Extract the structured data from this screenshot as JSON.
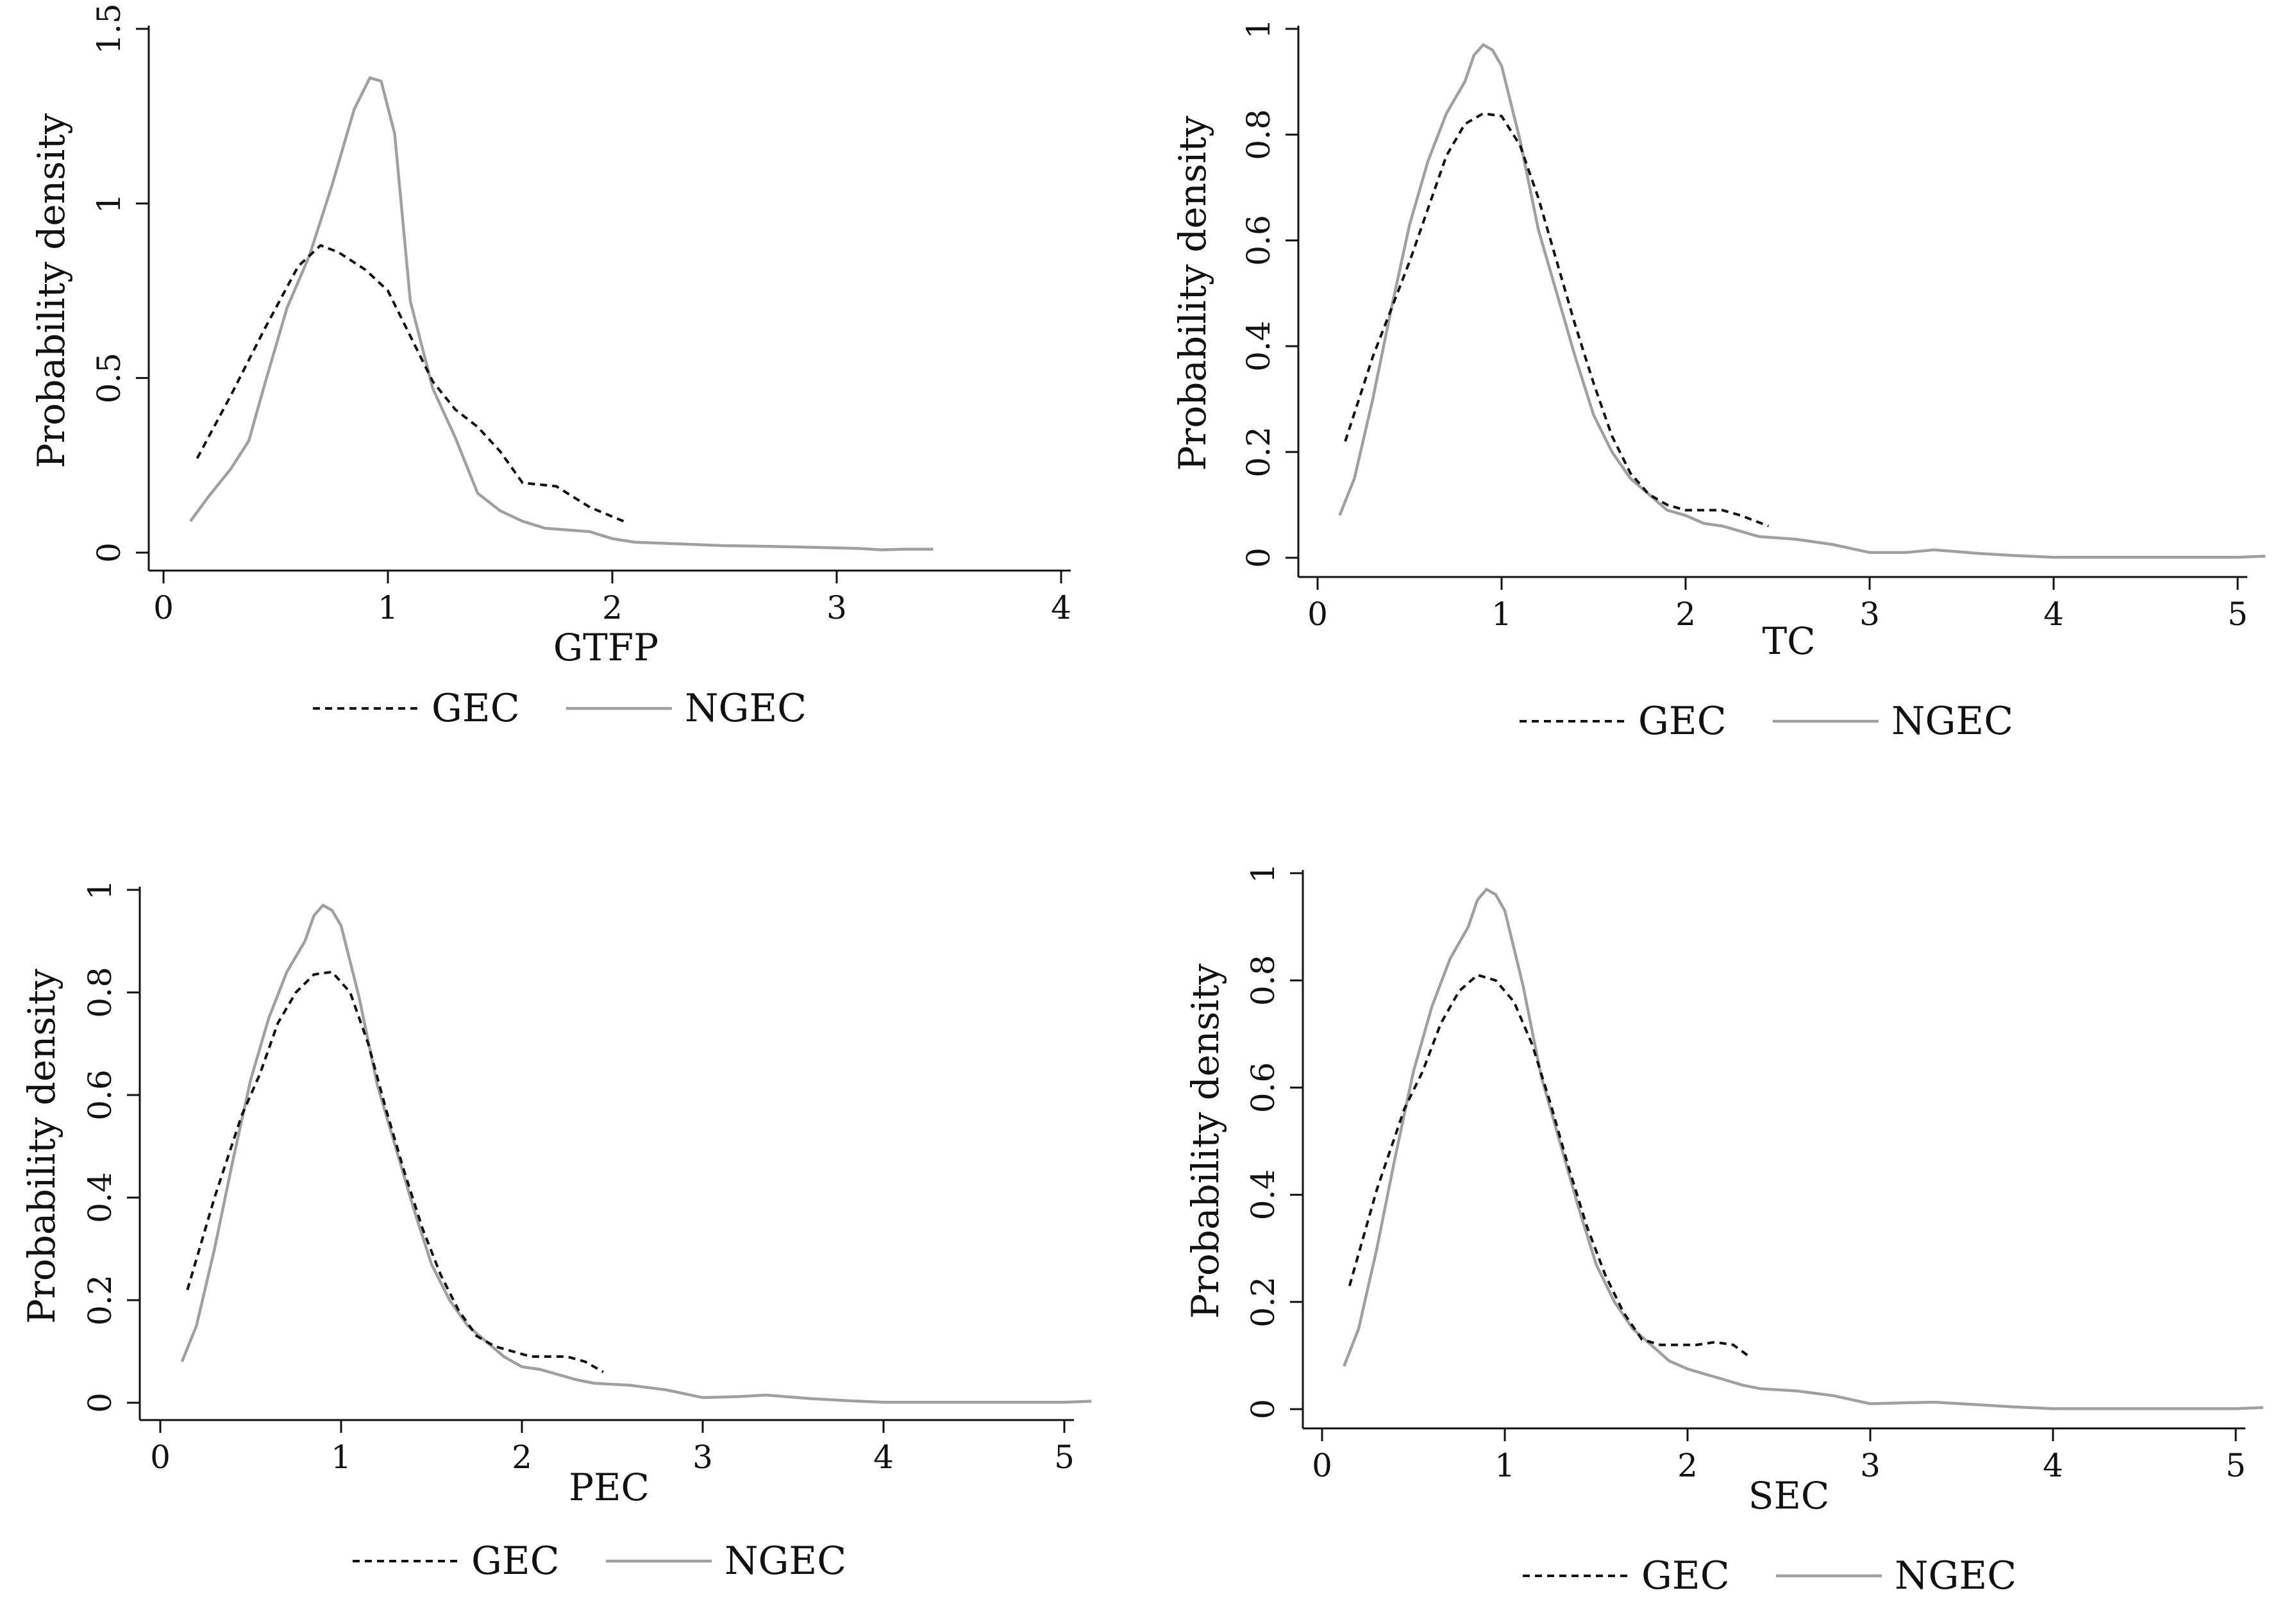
{
  "chart_data": [
    {
      "type": "line",
      "xlabel": "GTFP",
      "ylabel": "Probability density",
      "xlim": [
        0,
        4
      ],
      "ylim": [
        0,
        1.5
      ],
      "xticks": [
        "0",
        "1",
        "2",
        "3",
        "4"
      ],
      "yticks": [
        "0",
        "0.5",
        "1",
        "1.5"
      ],
      "grid": false,
      "legend": "bottom",
      "series": [
        {
          "name": "GEC",
          "style": "dashed",
          "color": "#111111",
          "x": [
            0.15,
            0.3,
            0.45,
            0.6,
            0.7,
            0.78,
            0.9,
            1.0,
            1.1,
            1.2,
            1.3,
            1.4,
            1.5,
            1.6,
            1.75,
            1.9,
            2.05
          ],
          "y": [
            0.27,
            0.45,
            0.64,
            0.82,
            0.88,
            0.86,
            0.81,
            0.75,
            0.62,
            0.49,
            0.41,
            0.36,
            0.29,
            0.2,
            0.19,
            0.13,
            0.09
          ]
        },
        {
          "name": "NGEC",
          "style": "solid",
          "color": "#a0a0a0",
          "x": [
            0.12,
            0.2,
            0.3,
            0.38,
            0.45,
            0.55,
            0.65,
            0.75,
            0.85,
            0.92,
            0.97,
            1.03,
            1.1,
            1.2,
            1.3,
            1.4,
            1.5,
            1.6,
            1.7,
            1.8,
            1.9,
            2.0,
            2.1,
            2.3,
            2.5,
            2.7,
            2.9,
            3.1,
            3.2,
            3.3,
            3.43
          ],
          "y": [
            0.09,
            0.16,
            0.24,
            0.32,
            0.48,
            0.7,
            0.85,
            1.05,
            1.27,
            1.36,
            1.35,
            1.2,
            0.72,
            0.47,
            0.33,
            0.17,
            0.12,
            0.09,
            0.07,
            0.065,
            0.06,
            0.04,
            0.03,
            0.025,
            0.02,
            0.018,
            0.015,
            0.012,
            0.008,
            0.01,
            0.01
          ]
        }
      ]
    },
    {
      "type": "line",
      "xlabel": "TC",
      "ylabel": "Probability density",
      "xlim": [
        0,
        5
      ],
      "ylim": [
        0,
        1
      ],
      "xticks": [
        "0",
        "1",
        "2",
        "3",
        "4",
        "5"
      ],
      "yticks": [
        "0",
        "0.2",
        "0.4",
        "0.6",
        "0.8",
        "1"
      ],
      "grid": false,
      "legend": "bottom",
      "series": [
        {
          "name": "GEC",
          "style": "dashed",
          "color": "#111111",
          "x": [
            0.15,
            0.3,
            0.5,
            0.6,
            0.7,
            0.8,
            0.9,
            1.0,
            1.1,
            1.2,
            1.3,
            1.4,
            1.5,
            1.6,
            1.7,
            1.8,
            1.9,
            2.0,
            2.1,
            2.2,
            2.3,
            2.45
          ],
          "y": [
            0.22,
            0.38,
            0.56,
            0.66,
            0.76,
            0.82,
            0.84,
            0.835,
            0.78,
            0.68,
            0.56,
            0.44,
            0.33,
            0.23,
            0.16,
            0.12,
            0.1,
            0.09,
            0.09,
            0.09,
            0.08,
            0.06
          ]
        },
        {
          "name": "NGEC",
          "style": "solid",
          "color": "#a0a0a0",
          "x": [
            0.12,
            0.2,
            0.3,
            0.4,
            0.5,
            0.6,
            0.7,
            0.8,
            0.85,
            0.9,
            0.95,
            1.0,
            1.1,
            1.2,
            1.3,
            1.4,
            1.5,
            1.6,
            1.7,
            1.8,
            1.9,
            2.0,
            2.1,
            2.2,
            2.3,
            2.4,
            2.6,
            2.8,
            3.0,
            3.2,
            3.35,
            3.6,
            3.8,
            4.0,
            4.5,
            5.0,
            5.15
          ],
          "y": [
            0.08,
            0.15,
            0.3,
            0.47,
            0.63,
            0.75,
            0.84,
            0.9,
            0.95,
            0.97,
            0.96,
            0.93,
            0.79,
            0.62,
            0.5,
            0.38,
            0.27,
            0.2,
            0.15,
            0.12,
            0.09,
            0.08,
            0.065,
            0.06,
            0.05,
            0.04,
            0.035,
            0.025,
            0.01,
            0.01,
            0.015,
            0.008,
            0.004,
            0.001,
            0.001,
            0.001,
            0.003
          ]
        }
      ]
    },
    {
      "type": "line",
      "xlabel": "PEC",
      "ylabel": "Probability density",
      "xlim": [
        0,
        5
      ],
      "ylim": [
        0,
        1
      ],
      "xticks": [
        "0",
        "1",
        "2",
        "3",
        "4",
        "5"
      ],
      "yticks": [
        "0",
        "0.2",
        "0.4",
        "0.6",
        "0.8",
        "1"
      ],
      "grid": false,
      "legend": "bottom",
      "series": [
        {
          "name": "GEC",
          "style": "dashed",
          "color": "#111111",
          "x": [
            0.15,
            0.3,
            0.45,
            0.55,
            0.65,
            0.75,
            0.85,
            0.95,
            1.05,
            1.15,
            1.25,
            1.35,
            1.45,
            1.55,
            1.65,
            1.75,
            1.85,
            1.95,
            2.05,
            2.15,
            2.25,
            2.35,
            2.45
          ],
          "y": [
            0.22,
            0.4,
            0.56,
            0.64,
            0.74,
            0.8,
            0.835,
            0.84,
            0.8,
            0.7,
            0.57,
            0.45,
            0.34,
            0.25,
            0.18,
            0.13,
            0.11,
            0.1,
            0.09,
            0.09,
            0.09,
            0.08,
            0.06
          ]
        },
        {
          "name": "NGEC",
          "style": "solid",
          "color": "#a0a0a0",
          "x": [
            0.12,
            0.2,
            0.3,
            0.4,
            0.5,
            0.6,
            0.7,
            0.8,
            0.85,
            0.9,
            0.95,
            1.0,
            1.1,
            1.2,
            1.3,
            1.4,
            1.5,
            1.6,
            1.7,
            1.8,
            1.9,
            2.0,
            2.1,
            2.2,
            2.3,
            2.4,
            2.6,
            2.8,
            3.0,
            3.2,
            3.35,
            3.6,
            3.8,
            4.0,
            4.5,
            5.0,
            5.15
          ],
          "y": [
            0.08,
            0.15,
            0.3,
            0.47,
            0.63,
            0.75,
            0.84,
            0.9,
            0.95,
            0.97,
            0.96,
            0.93,
            0.79,
            0.62,
            0.5,
            0.38,
            0.27,
            0.2,
            0.15,
            0.12,
            0.09,
            0.07,
            0.065,
            0.055,
            0.045,
            0.038,
            0.034,
            0.025,
            0.01,
            0.012,
            0.015,
            0.008,
            0.004,
            0.001,
            0.001,
            0.001,
            0.003
          ]
        }
      ]
    },
    {
      "type": "line",
      "xlabel": "SEC",
      "ylabel": "Probability density",
      "xlim": [
        0,
        5
      ],
      "ylim": [
        0,
        1
      ],
      "xticks": [
        "0",
        "1",
        "2",
        "3",
        "4",
        "5"
      ],
      "yticks": [
        "0",
        "0.2",
        "0.4",
        "0.6",
        "0.8",
        "1"
      ],
      "grid": false,
      "legend": "bottom",
      "series": [
        {
          "name": "GEC",
          "style": "dashed",
          "color": "#111111",
          "x": [
            0.15,
            0.3,
            0.45,
            0.55,
            0.65,
            0.75,
            0.85,
            0.95,
            1.05,
            1.15,
            1.25,
            1.35,
            1.45,
            1.55,
            1.65,
            1.75,
            1.85,
            1.95,
            2.05,
            2.15,
            2.25,
            2.33
          ],
          "y": [
            0.23,
            0.41,
            0.56,
            0.63,
            0.72,
            0.78,
            0.81,
            0.8,
            0.76,
            0.68,
            0.57,
            0.45,
            0.34,
            0.25,
            0.18,
            0.13,
            0.12,
            0.12,
            0.12,
            0.125,
            0.12,
            0.1
          ]
        },
        {
          "name": "NGEC",
          "style": "solid",
          "color": "#a0a0a0",
          "x": [
            0.12,
            0.2,
            0.3,
            0.4,
            0.5,
            0.6,
            0.7,
            0.8,
            0.85,
            0.9,
            0.95,
            1.0,
            1.1,
            1.2,
            1.3,
            1.4,
            1.5,
            1.6,
            1.7,
            1.8,
            1.9,
            2.0,
            2.1,
            2.2,
            2.3,
            2.4,
            2.6,
            2.8,
            3.0,
            3.2,
            3.35,
            3.6,
            3.8,
            4.0,
            4.5,
            5.0,
            5.15
          ],
          "y": [
            0.08,
            0.15,
            0.3,
            0.47,
            0.63,
            0.75,
            0.84,
            0.9,
            0.95,
            0.97,
            0.96,
            0.93,
            0.79,
            0.62,
            0.5,
            0.38,
            0.27,
            0.2,
            0.15,
            0.12,
            0.09,
            0.075,
            0.065,
            0.055,
            0.045,
            0.038,
            0.034,
            0.025,
            0.01,
            0.012,
            0.013,
            0.008,
            0.004,
            0.001,
            0.001,
            0.001,
            0.003
          ]
        }
      ]
    }
  ]
}
